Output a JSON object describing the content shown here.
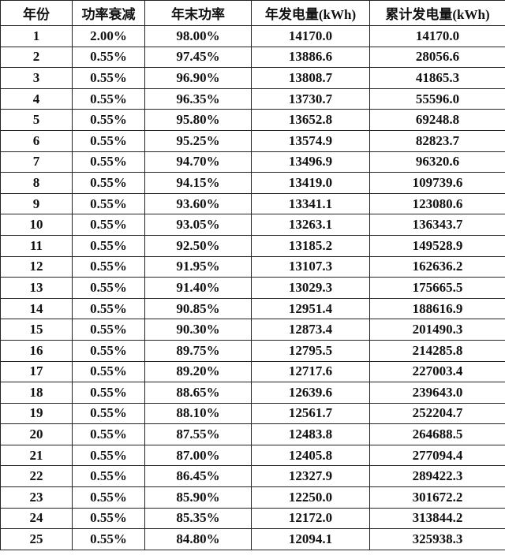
{
  "table": {
    "headers": [
      "年份",
      "功率衰减",
      "年末功率",
      "年发电量(kWh)",
      "累计发电量(kWh)"
    ],
    "rows": [
      [
        "1",
        "2.00%",
        "98.00%",
        "14170.0",
        "14170.0"
      ],
      [
        "2",
        "0.55%",
        "97.45%",
        "13886.6",
        "28056.6"
      ],
      [
        "3",
        "0.55%",
        "96.90%",
        "13808.7",
        "41865.3"
      ],
      [
        "4",
        "0.55%",
        "96.35%",
        "13730.7",
        "55596.0"
      ],
      [
        "5",
        "0.55%",
        "95.80%",
        "13652.8",
        "69248.8"
      ],
      [
        "6",
        "0.55%",
        "95.25%",
        "13574.9",
        "82823.7"
      ],
      [
        "7",
        "0.55%",
        "94.70%",
        "13496.9",
        "96320.6"
      ],
      [
        "8",
        "0.55%",
        "94.15%",
        "13419.0",
        "109739.6"
      ],
      [
        "9",
        "0.55%",
        "93.60%",
        "13341.1",
        "123080.6"
      ],
      [
        "10",
        "0.55%",
        "93.05%",
        "13263.1",
        "136343.7"
      ],
      [
        "11",
        "0.55%",
        "92.50%",
        "13185.2",
        "149528.9"
      ],
      [
        "12",
        "0.55%",
        "91.95%",
        "13107.3",
        "162636.2"
      ],
      [
        "13",
        "0.55%",
        "91.40%",
        "13029.3",
        "175665.5"
      ],
      [
        "14",
        "0.55%",
        "90.85%",
        "12951.4",
        "188616.9"
      ],
      [
        "15",
        "0.55%",
        "90.30%",
        "12873.4",
        "201490.3"
      ],
      [
        "16",
        "0.55%",
        "89.75%",
        "12795.5",
        "214285.8"
      ],
      [
        "17",
        "0.55%",
        "89.20%",
        "12717.6",
        "227003.4"
      ],
      [
        "18",
        "0.55%",
        "88.65%",
        "12639.6",
        "239643.0"
      ],
      [
        "19",
        "0.55%",
        "88.10%",
        "12561.7",
        "252204.7"
      ],
      [
        "20",
        "0.55%",
        "87.55%",
        "12483.8",
        "264688.5"
      ],
      [
        "21",
        "0.55%",
        "87.00%",
        "12405.8",
        "277094.4"
      ],
      [
        "22",
        "0.55%",
        "86.45%",
        "12327.9",
        "289422.3"
      ],
      [
        "23",
        "0.55%",
        "85.90%",
        "12250.0",
        "301672.2"
      ],
      [
        "24",
        "0.55%",
        "85.35%",
        "12172.0",
        "313844.2"
      ],
      [
        "25",
        "0.55%",
        "84.80%",
        "12094.1",
        "325938.3"
      ]
    ]
  }
}
